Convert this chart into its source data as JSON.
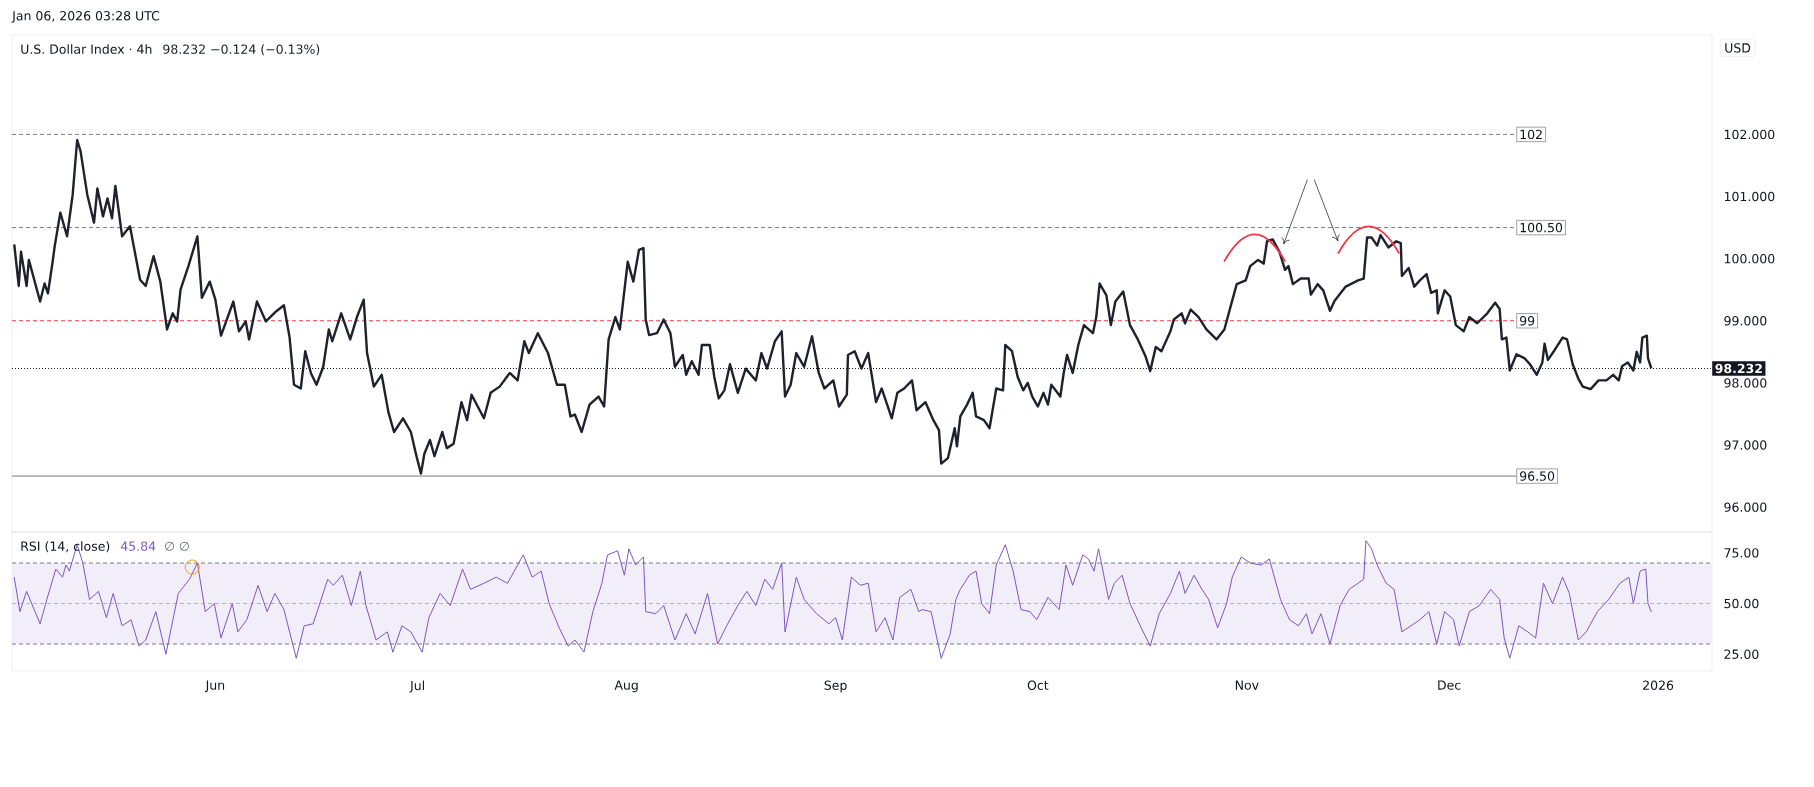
{
  "chart_data": [
    {
      "type": "line",
      "title": "U.S. Dollar Index · 4h",
      "subtitle": "98.232  −0.124 (−0.13%)",
      "ylabel": "USD",
      "annotations": [
        "Jan 06, 2026 03:28 UTC"
      ],
      "x": [
        "2025-05-02T04:00",
        "2025-05-02T20:00",
        "2025-05-03T04:00",
        "2025-05-04T00:00",
        "2025-05-04T08:00",
        "2025-05-06T00:00",
        "2025-05-06T16:00",
        "2025-05-07T04:00",
        "2025-05-07T20:00",
        "2025-05-08T04:00",
        "2025-05-09T00:00",
        "2025-05-10T00:00",
        "2025-05-10T20:00",
        "2025-05-11T12:00",
        "2025-05-12T00:00",
        "2025-05-13T00:00",
        "2025-05-14T00:00",
        "2025-05-14T12:00",
        "2025-05-15T08:00",
        "2025-05-16T00:00",
        "2025-05-16T16:00",
        "2025-05-17T04:00",
        "2025-05-18T04:00",
        "2025-05-19T08:00",
        "2025-05-20T20:00",
        "2025-05-21T16:00",
        "2025-05-22T20:00",
        "2025-05-23T20:00",
        "2025-05-24T20:00",
        "2025-05-25T16:00",
        "2025-05-26T08:00",
        "2025-05-26T20:00",
        "2025-05-28T00:00",
        "2025-05-29T08:00",
        "2025-05-30T00:00",
        "2025-05-31T04:00",
        "2025-06-01T00:00",
        "2025-06-01T20:00",
        "2025-06-03T16:00",
        "2025-06-04T12:00",
        "2025-06-05T12:00",
        "2025-06-06T00:00",
        "2025-06-07T04:00",
        "2025-06-08T12:00",
        "2025-06-10T00:00",
        "2025-06-11T04:00",
        "2025-06-12T00:00",
        "2025-06-12T16:00",
        "2025-06-13T16:00",
        "2025-06-14T08:00",
        "2025-06-15T04:00",
        "2025-06-16T00:00",
        "2025-06-17T00:00",
        "2025-06-17T20:00",
        "2025-06-18T08:00",
        "2025-06-19T16:00",
        "2025-06-21T00:00",
        "2025-06-22T00:00",
        "2025-06-23T00:00",
        "2025-06-23T12:00",
        "2025-06-24T12:00",
        "2025-06-25T16:00",
        "2025-06-26T16:00",
        "2025-06-27T12:00",
        "2025-06-28T20:00",
        "2025-06-30T00:00",
        "2025-06-30T20:00",
        "2025-07-01T12:00",
        "2025-07-02T00:00",
        "2025-07-02T20:00",
        "2025-07-03T12:00",
        "2025-07-04T16:00",
        "2025-07-05T08:00",
        "2025-07-06T08:00",
        "2025-07-07T12:00",
        "2025-07-08T08:00",
        "2025-07-09T00:00",
        "2025-07-10T20:00",
        "2025-07-11T20:00",
        "2025-07-13T04:00",
        "2025-07-14T16:00",
        "2025-07-15T20:00",
        "2025-07-16T20:00",
        "2025-07-17T12:00",
        "2025-07-18T20:00",
        "2025-07-20T08:00",
        "2025-07-21T16:00",
        "2025-07-22T20:00",
        "2025-07-23T16:00",
        "2025-07-24T08:00",
        "2025-07-25T08:00",
        "2025-07-26T12:00",
        "2025-07-27T20:00",
        "2025-07-28T16:00",
        "2025-07-29T08:00",
        "2025-07-30T08:00",
        "2025-07-31T00:00",
        "2025-08-01T04:00",
        "2025-08-02T00:00",
        "2025-08-02T20:00",
        "2025-08-03T12:00",
        "2025-08-03T20:00",
        "2025-08-04T08:00",
        "2025-08-05T12:00",
        "2025-08-06T12:00",
        "2025-08-07T12:00",
        "2025-08-08T04:00",
        "2025-08-09T08:00",
        "2025-08-09T20:00",
        "2025-08-10T16:00",
        "2025-08-11T16:00",
        "2025-08-12T04:00",
        "2025-08-13T08:00",
        "2025-08-14T00:00",
        "2025-08-14T16:00",
        "2025-08-15T12:00",
        "2025-08-16T08:00",
        "2025-08-17T12:00",
        "2025-08-18T16:00",
        "2025-08-20T04:00",
        "2025-08-21T00:00",
        "2025-08-21T20:00",
        "2025-08-23T00:00",
        "2025-08-24T00:00",
        "2025-08-24T12:00",
        "2025-08-25T08:00",
        "2025-08-26T04:00",
        "2025-08-27T08:00",
        "2025-08-28T12:00",
        "2025-08-29T12:00",
        "2025-08-30T08:00",
        "2025-08-31T16:00",
        "2025-09-01T12:00",
        "2025-09-02T16:00",
        "2025-09-02T20:00",
        "2025-09-03T20:00",
        "2025-09-04T20:00",
        "2025-09-05T20:00",
        "2025-09-07T00:00",
        "2025-09-07T20:00",
        "2025-09-09T08:00",
        "2025-09-10T04:00",
        "2025-09-11T04:00",
        "2025-09-12T08:00",
        "2025-09-13T00:00",
        "2025-09-14T08:00",
        "2025-09-15T12:00",
        "2025-09-16T08:00",
        "2025-09-16T16:00",
        "2025-09-17T16:00",
        "2025-09-18T16:00",
        "2025-09-19T00:00",
        "2025-09-19T12:00",
        "2025-09-20T12:00",
        "2025-09-21T08:00",
        "2025-09-21T20:00",
        "2025-09-23T00:00",
        "2025-09-23T20:00",
        "2025-09-24T20:00",
        "2025-09-25T20:00",
        "2025-09-26T04:00",
        "2025-09-27T04:00",
        "2025-09-28T00:00",
        "2025-09-28T20:00",
        "2025-09-29T12:00",
        "2025-09-30T04:00",
        "2025-10-01T00:00",
        "2025-10-01T20:00",
        "2025-10-02T12:00",
        "2025-10-03T00:00",
        "2025-10-04T08:00",
        "2025-10-04T20:00",
        "2025-10-05T08:00",
        "2025-10-06T04:00",
        "2025-10-07T00:00",
        "2025-10-07T20:00",
        "2025-10-09T04:00",
        "2025-10-09T16:00",
        "2025-10-10T04:00",
        "2025-10-11T04:00",
        "2025-10-11T20:00",
        "2025-10-12T12:00",
        "2025-10-13T16:00",
        "2025-10-14T16:00",
        "2025-10-15T20:00",
        "2025-10-17T00:00",
        "2025-10-17T16:00",
        "2025-10-18T12:00",
        "2025-10-19T08:00",
        "2025-10-20T16:00",
        "2025-10-21T04:00",
        "2025-10-22T08:00",
        "2025-10-22T20:00",
        "2025-10-23T16:00",
        "2025-10-24T20:00",
        "2025-10-26T00:00",
        "2025-10-27T12:00",
        "2025-10-28T16:00",
        "2025-10-29T16:00",
        "2025-10-30T12:00",
        "2025-10-31T20:00",
        "2025-11-01T12:00",
        "2025-11-02T16:00",
        "2025-11-03T12:00",
        "2025-11-04T00:00",
        "2025-11-04T20:00",
        "2025-11-05T20:00",
        "2025-11-06T16:00",
        "2025-11-07T04:00",
        "2025-11-07T20:00",
        "2025-11-09T00:00",
        "2025-11-10T04:00",
        "2025-11-10T12:00",
        "2025-11-11T12:00",
        "2025-11-12T08:00",
        "2025-11-13T08:00",
        "2025-11-14T00:00",
        "2025-11-15T16:00",
        "2025-11-17T12:00",
        "2025-11-18T08:00",
        "2025-11-18T20:00",
        "2025-11-19T12:00",
        "2025-11-20T08:00",
        "2025-11-20T20:00",
        "2025-11-22T00:00",
        "2025-11-23T04:00",
        "2025-11-23T20:00",
        "2025-11-24T00:00",
        "2025-11-25T00:00",
        "2025-11-25T20:00",
        "2025-11-26T16:00",
        "2025-11-27T16:00",
        "2025-11-28T08:00",
        "2025-11-29T04:00",
        "2025-11-29T08:00",
        "2025-11-30T08:00",
        "2025-12-01T04:00",
        "2025-12-02T00:00",
        "2025-12-03T04:00",
        "2025-12-04T00:00",
        "2025-12-05T04:00",
        "2025-12-06T16:00",
        "2025-12-07T20:00",
        "2025-12-08T12:00",
        "2025-12-08T20:00",
        "2025-12-09T12:00",
        "2025-12-10T00:00",
        "2025-12-11T00:00",
        "2025-12-12T04:00",
        "2025-12-13T00:00",
        "2025-12-14T00:00",
        "2025-12-14T20:00",
        "2025-12-15T04:00",
        "2025-12-15T16:00",
        "2025-12-16T16:00",
        "2025-12-17T20:00",
        "2025-12-18T12:00",
        "2025-12-19T08:00",
        "2025-12-20T04:00",
        "2025-12-20T20:00",
        "2025-12-22T00:00",
        "2025-12-23T04:00",
        "2025-12-24T08:00",
        "2025-12-25T08:00",
        "2025-12-26T04:00",
        "2025-12-26T16:00",
        "2025-12-27T12:00",
        "2025-12-28T08:00",
        "2025-12-28T20:00",
        "2025-12-29T08:00",
        "2025-12-29T16:00",
        "2025-12-30T08:00",
        "2025-12-30T12:00",
        "2025-12-31T00:00"
      ],
      "series": [
        {
          "color": "#1e222d",
          "values": [
            100.23,
            99.56,
            100.11,
            99.56,
            99.98,
            99.31,
            99.6,
            99.44,
            99.93,
            100.2,
            100.74,
            100.36,
            101.03,
            101.91,
            101.73,
            101.03,
            100.58,
            101.13,
            100.68,
            100.97,
            100.65,
            101.17,
            100.36,
            100.52,
            99.66,
            99.56,
            100.04,
            99.63,
            98.86,
            99.12,
            98.99,
            99.5,
            99.88,
            100.36,
            99.37,
            99.63,
            99.34,
            98.76,
            99.31,
            98.83,
            98.99,
            98.7,
            99.31,
            98.99,
            99.15,
            99.25,
            98.74,
            97.97,
            97.91,
            98.51,
            98.16,
            97.97,
            98.26,
            98.86,
            98.67,
            99.12,
            98.7,
            99.06,
            99.34,
            98.48,
            97.94,
            98.13,
            97.53,
            97.21,
            97.43,
            97.21,
            96.82,
            96.54,
            96.86,
            97.08,
            96.82,
            97.21,
            96.95,
            97.02,
            97.69,
            97.4,
            97.81,
            97.43,
            97.84,
            97.94,
            98.16,
            98.04,
            98.67,
            98.48,
            98.8,
            98.48,
            97.97,
            97.97,
            97.46,
            97.49,
            97.21,
            97.65,
            97.78,
            97.62,
            98.7,
            99.06,
            98.86,
            99.95,
            99.63,
            100.14,
            100.17,
            99.02,
            98.77,
            98.8,
            99.02,
            98.8,
            98.26,
            98.45,
            98.13,
            98.35,
            98.13,
            98.61,
            98.61,
            98.1,
            97.75,
            97.88,
            98.3,
            97.84,
            98.23,
            98.04,
            98.48,
            98.23,
            98.67,
            98.83,
            97.78,
            97.97,
            98.48,
            98.26,
            98.75,
            98.16,
            97.91,
            98.04,
            97.62,
            97.81,
            98.45,
            98.51,
            98.23,
            98.48,
            97.69,
            97.91,
            97.43,
            97.84,
            97.91,
            98.04,
            97.56,
            97.69,
            97.4,
            97.24,
            96.7,
            96.79,
            97.27,
            96.98,
            97.46,
            97.65,
            97.84,
            97.46,
            97.4,
            97.27,
            97.91,
            97.88,
            98.61,
            98.51,
            98.1,
            97.88,
            98.0,
            97.78,
            97.62,
            97.84,
            97.65,
            97.97,
            97.78,
            98.16,
            98.45,
            98.16,
            98.61,
            98.93,
            98.8,
            99.06,
            99.6,
            99.41,
            98.93,
            99.31,
            99.47,
            98.93,
            98.7,
            98.42,
            98.19,
            98.58,
            98.51,
            98.83,
            99.02,
            99.12,
            98.96,
            99.18,
            99.06,
            98.86,
            98.7,
            98.86,
            99.26,
            99.59,
            99.65,
            99.88,
            99.98,
            99.92,
            100.28,
            100.31,
            100.11,
            99.82,
            99.88,
            99.59,
            99.68,
            99.68,
            99.42,
            99.59,
            99.49,
            99.16,
            99.32,
            99.55,
            99.65,
            99.68,
            100.34,
            100.34,
            100.21,
            100.38,
            100.18,
            100.28,
            100.25,
            99.72,
            99.85,
            99.55,
            99.65,
            99.75,
            99.45,
            99.49,
            99.12,
            99.49,
            99.39,
            98.93,
            98.83,
            99.06,
            98.96,
            99.12,
            99.29,
            99.19,
            98.7,
            98.73,
            98.2,
            98.46,
            98.4,
            98.3,
            98.13,
            98.33,
            98.63,
            98.37,
            98.53,
            98.73,
            98.7,
            98.3,
            98.07,
            97.94,
            97.9,
            98.04,
            98.04,
            98.13,
            98.04,
            98.27,
            98.33,
            98.2,
            98.5,
            98.33,
            98.73,
            98.76,
            98.4,
            98.232
          ]
        }
      ],
      "xlim": [
        "2025-05-01T20:00",
        "2026-01-09T00:00"
      ],
      "ylim": [
        95.6,
        103.6
      ],
      "yticks": [
        {
          "value": 96,
          "label": "96.000"
        },
        {
          "value": 97,
          "label": "97.000"
        },
        {
          "value": 98,
          "label": "98.000"
        },
        {
          "value": 99,
          "label": "99.000"
        },
        {
          "value": 100,
          "label": "100.000"
        },
        {
          "value": 101,
          "label": "101.000"
        },
        {
          "value": 102,
          "label": "102.000"
        }
      ],
      "tick_labels": "y",
      "ref_lines": [
        {
          "axis": "y",
          "value": 102,
          "label": "102",
          "color": "#787b86",
          "line_style": "dashed"
        },
        {
          "axis": "y",
          "value": 100.5,
          "label": "100.50",
          "color": "#787b86",
          "line_style": "dashed"
        },
        {
          "axis": "y",
          "value": 99,
          "label": "99",
          "color": "#f23645",
          "line_style": "dashed"
        },
        {
          "axis": "y",
          "value": 96.5,
          "label": "96.50",
          "color": "#787b86",
          "line_style": "solid"
        },
        {
          "axis": "y",
          "value": 98.232,
          "label": "98.232",
          "color": "#131722",
          "line_style": "dotted"
        }
      ]
    },
    {
      "type": "line",
      "title": "RSI (14, close)",
      "subtitle": "45.84",
      "annotations": [
        "∅  ∅"
      ],
      "x": [
        "2025-05-02T04:00",
        "2025-05-03T00:00",
        "2025-05-04T00:00",
        "2025-05-06T00:00",
        "2025-05-07T00:00",
        "2025-05-08T08:00",
        "2025-05-09T08:00",
        "2025-05-09T20:00",
        "2025-05-10T08:00",
        "2025-05-11T12:00",
        "2025-05-12T08:00",
        "2025-05-13T08:00",
        "2025-05-14T16:00",
        "2025-05-15T20:00",
        "2025-05-16T20:00",
        "2025-05-18T04:00",
        "2025-05-19T12:00",
        "2025-05-20T16:00",
        "2025-05-21T16:00",
        "2025-05-23T04:00",
        "2025-05-24T16:00",
        "2025-05-26T12:00",
        "2025-05-28T04:00",
        "2025-05-29T08:00",
        "2025-05-30T12:00",
        "2025-05-31T20:00",
        "2025-06-01T20:00",
        "2025-06-03T12:00",
        "2025-06-04T08:00",
        "2025-06-05T16:00",
        "2025-06-07T08:00",
        "2025-06-08T16:00",
        "2025-06-09T20:00",
        "2025-06-11T04:00",
        "2025-06-13T00:00",
        "2025-06-14T04:00",
        "2025-06-15T12:00",
        "2025-06-17T16:00",
        "2025-06-18T12:00",
        "2025-06-19T20:00",
        "2025-06-21T04:00",
        "2025-06-22T12:00",
        "2025-06-23T08:00",
        "2025-06-24T20:00",
        "2025-06-26T12:00",
        "2025-06-27T08:00",
        "2025-06-28T16:00",
        "2025-06-30T00:00",
        "2025-07-01T16:00",
        "2025-07-02T16:00",
        "2025-07-04T08:00",
        "2025-07-05T20:00",
        "2025-07-07T16:00",
        "2025-07-08T20:00",
        "2025-07-10T20:00",
        "2025-07-12T16:00",
        "2025-07-14T08:00",
        "2025-07-15T08:00",
        "2025-07-16T16:00",
        "2025-07-18T00:00",
        "2025-07-19T08:00",
        "2025-07-20T12:00",
        "2025-07-22T00:00",
        "2025-07-23T08:00",
        "2025-07-24T08:00",
        "2025-07-25T16:00",
        "2025-07-27T00:00",
        "2025-07-28T08:00",
        "2025-07-29T04:00",
        "2025-07-30T16:00",
        "2025-07-31T16:00",
        "2025-08-01T08:00",
        "2025-08-02T08:00",
        "2025-08-03T12:00",
        "2025-08-03T20:00",
        "2025-08-05T08:00",
        "2025-08-06T12:00",
        "2025-08-08T04:00",
        "2025-08-09T20:00",
        "2025-08-11T04:00",
        "2025-08-13T00:00",
        "2025-08-14T12:00",
        "2025-08-15T20:00",
        "2025-08-17T16:00",
        "2025-08-18T20:00",
        "2025-08-20T04:00",
        "2025-08-21T12:00",
        "2025-08-22T16:00",
        "2025-08-24T00:00",
        "2025-08-24T12:00",
        "2025-08-26T04:00",
        "2025-08-27T08:00",
        "2025-08-29T04:00",
        "2025-08-31T00:00",
        "2025-09-01T00:00",
        "2025-09-02T00:00",
        "2025-09-03T08:00",
        "2025-09-04T16:00",
        "2025-09-05T20:00",
        "2025-09-07T00:00",
        "2025-09-08T08:00",
        "2025-09-09T12:00",
        "2025-09-10T12:00",
        "2025-09-12T04:00",
        "2025-09-13T08:00",
        "2025-09-13T20:00",
        "2025-09-15T04:00",
        "2025-09-16T16:00",
        "2025-09-18T00:00",
        "2025-09-18T20:00",
        "2025-09-19T12:00",
        "2025-09-20T20:00",
        "2025-09-21T20:00",
        "2025-09-22T16:00",
        "2025-09-23T20:00",
        "2025-09-24T20:00",
        "2025-09-26T04:00",
        "2025-09-27T08:00",
        "2025-09-28T12:00",
        "2025-09-29T20:00",
        "2025-09-30T20:00",
        "2025-10-02T12:00",
        "2025-10-04T04:00",
        "2025-10-05T04:00",
        "2025-10-06T04:00",
        "2025-10-07T16:00",
        "2025-10-08T12:00",
        "2025-10-09T08:00",
        "2025-10-10T00:00",
        "2025-10-11T12:00",
        "2025-10-12T08:00",
        "2025-10-13T12:00",
        "2025-10-14T16:00",
        "2025-10-16T08:00",
        "2025-10-17T16:00",
        "2025-10-19T00:00",
        "2025-10-20T16:00",
        "2025-10-22T00:00",
        "2025-10-22T20:00",
        "2025-10-24T04:00",
        "2025-10-25T08:00",
        "2025-10-26T08:00",
        "2025-10-27T16:00",
        "2025-10-29T00:00",
        "2025-10-29T20:00",
        "2025-10-31T04:00",
        "2025-11-01T12:00",
        "2025-11-03T04:00",
        "2025-11-04T08:00",
        "2025-11-06T00:00",
        "2025-11-07T08:00",
        "2025-11-08T16:00",
        "2025-11-09T20:00",
        "2025-11-10T16:00",
        "2025-11-12T00:00",
        "2025-11-13T08:00",
        "2025-11-14T20:00",
        "2025-11-16T04:00",
        "2025-11-17T12:00",
        "2025-11-18T08:00",
        "2025-11-18T16:00",
        "2025-11-19T12:00",
        "2025-11-20T08:00",
        "2025-11-21T16:00",
        "2025-11-22T20:00",
        "2025-11-24T00:00",
        "2025-11-25T08:00",
        "2025-11-26T16:00",
        "2025-11-28T00:00",
        "2025-11-29T04:00",
        "2025-11-30T08:00",
        "2025-12-01T16:00",
        "2025-12-02T12:00",
        "2025-12-04T00:00",
        "2025-12-05T12:00",
        "2025-12-07T04:00",
        "2025-12-08T12:00",
        "2025-12-09T04:00",
        "2025-12-10T00:00",
        "2025-12-11T08:00",
        "2025-12-12T16:00",
        "2025-12-13T20:00",
        "2025-12-15T00:00",
        "2025-12-16T08:00",
        "2025-12-17T20:00",
        "2025-12-18T20:00",
        "2025-12-20T04:00",
        "2025-12-21T08:00",
        "2025-12-23T00:00",
        "2025-12-24T16:00",
        "2025-12-26T08:00",
        "2025-12-27T16:00",
        "2025-12-28T08:00",
        "2025-12-29T08:00",
        "2025-12-30T04:00",
        "2025-12-30T12:00",
        "2025-12-31T00:00"
      ],
      "series": [
        {
          "color": "#7e57c2",
          "values": [
            63,
            46,
            56,
            40,
            52,
            67,
            63,
            69,
            66,
            79,
            70,
            52,
            56,
            43,
            55,
            39,
            42,
            29,
            32,
            46,
            25,
            55,
            62,
            70,
            46,
            50,
            33,
            50,
            36,
            42,
            59,
            46,
            55,
            47,
            23,
            39,
            40,
            62,
            59,
            64,
            49,
            66,
            49,
            32,
            36,
            26,
            39,
            36,
            26,
            43,
            55,
            49,
            67,
            57,
            60,
            63,
            60,
            66,
            74,
            63,
            66,
            50,
            38,
            29,
            32,
            26,
            46,
            60,
            74,
            76,
            64,
            77,
            69,
            73,
            46,
            45,
            49,
            32,
            45,
            35,
            55,
            30,
            39,
            50,
            56,
            49,
            62,
            57,
            70,
            36,
            63,
            52,
            45,
            40,
            43,
            32,
            63,
            59,
            60,
            36,
            43,
            32,
            53,
            57,
            46,
            47,
            46,
            23,
            35,
            52,
            57,
            64,
            66,
            50,
            45,
            69,
            79,
            66,
            47,
            46,
            42,
            53,
            47,
            69,
            59,
            74,
            72,
            66,
            77,
            52,
            60,
            64,
            50,
            38,
            29,
            45,
            55,
            66,
            55,
            64,
            57,
            52,
            38,
            50,
            63,
            73,
            70,
            69,
            72,
            52,
            42,
            39,
            45,
            35,
            45,
            30,
            49,
            57,
            60,
            62,
            81,
            77,
            69,
            60,
            57,
            36,
            39,
            42,
            46,
            30,
            46,
            42,
            29,
            46,
            49,
            57,
            52,
            33,
            23,
            39,
            36,
            33,
            60,
            50,
            63,
            55,
            32,
            36,
            46,
            52,
            60,
            63,
            50,
            66,
            67,
            50,
            45.84
          ]
        }
      ],
      "xlim": [
        "2025-05-01T20:00",
        "2026-01-09T00:00"
      ],
      "ylim": [
        16.7,
        85.3
      ],
      "xticks": [
        {
          "value": "2025-06-01",
          "label": "Jun"
        },
        {
          "value": "2025-07-01",
          "label": "Jul"
        },
        {
          "value": "2025-08-01",
          "label": "Aug"
        },
        {
          "value": "2025-09-01",
          "label": "Sep"
        },
        {
          "value": "2025-10-01",
          "label": "Oct"
        },
        {
          "value": "2025-11-01",
          "label": "Nov"
        },
        {
          "value": "2025-12-01",
          "label": "Dec"
        },
        {
          "value": "2026-01-01",
          "label": "2026"
        }
      ],
      "yticks": [
        {
          "value": 25,
          "label": "25.00"
        },
        {
          "value": 50,
          "label": "50.00"
        },
        {
          "value": 75,
          "label": "75.00"
        }
      ],
      "ref_lines": [
        {
          "axis": "y",
          "value": 70,
          "color": "#787b86",
          "line_style": "dashed"
        },
        {
          "axis": "y",
          "value": 50,
          "color": "#b2b5be",
          "line_style": "dashed"
        },
        {
          "axis": "y",
          "value": 30,
          "color": "#787b86",
          "line_style": "dashed"
        }
      ],
      "bands": [
        {
          "axis": "y",
          "from": 30,
          "to": 70,
          "color": "#f1edf9"
        }
      ]
    }
  ]
}
